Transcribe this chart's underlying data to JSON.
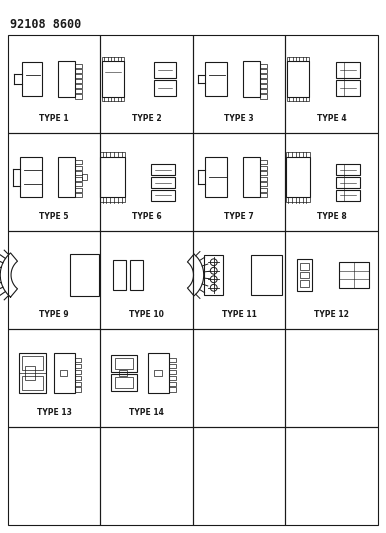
{
  "title": "92108 8600",
  "title_fontsize": 8.5,
  "bg_color": "#ffffff",
  "line_color": "#1a1a1a",
  "grid_rows": 5,
  "grid_cols": 4,
  "cell_labels": [
    "TYPE 1",
    "TYPE 2",
    "TYPE 3",
    "TYPE 4",
    "TYPE 5",
    "TYPE 6",
    "TYPE 7",
    "TYPE 8",
    "TYPE 9",
    "TYPE 10",
    "TYPE 11",
    "TYPE 12",
    "TYPE 13",
    "TYPE 14",
    "",
    "",
    "",
    "",
    "",
    ""
  ],
  "label_fontsize": 5.5
}
